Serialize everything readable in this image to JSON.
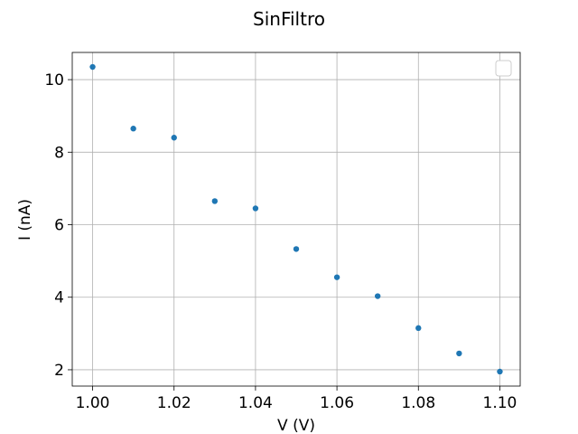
{
  "chart_data": {
    "type": "scatter",
    "title": "SinFiltro",
    "xlabel": "V (V)",
    "ylabel": "I (nA)",
    "xlim": [
      0.995,
      1.105
    ],
    "ylim": [
      1.55,
      10.75
    ],
    "xticks": [
      1.0,
      1.02,
      1.04,
      1.06,
      1.08,
      1.1
    ],
    "xtick_labels": [
      "1.00",
      "1.02",
      "1.04",
      "1.06",
      "1.08",
      "1.10"
    ],
    "yticks": [
      2,
      4,
      6,
      8,
      10
    ],
    "ytick_labels": [
      "2",
      "4",
      "6",
      "8",
      "10"
    ],
    "grid": true,
    "legend": "upper-right, empty",
    "series": [
      {
        "color": "#1f77b4",
        "x": [
          1.0,
          1.01,
          1.02,
          1.03,
          1.04,
          1.05,
          1.06,
          1.07,
          1.08,
          1.09,
          1.1
        ],
        "y": [
          10.35,
          8.65,
          8.4,
          6.65,
          6.45,
          5.33,
          4.55,
          4.03,
          3.15,
          2.45,
          1.95
        ]
      }
    ]
  }
}
